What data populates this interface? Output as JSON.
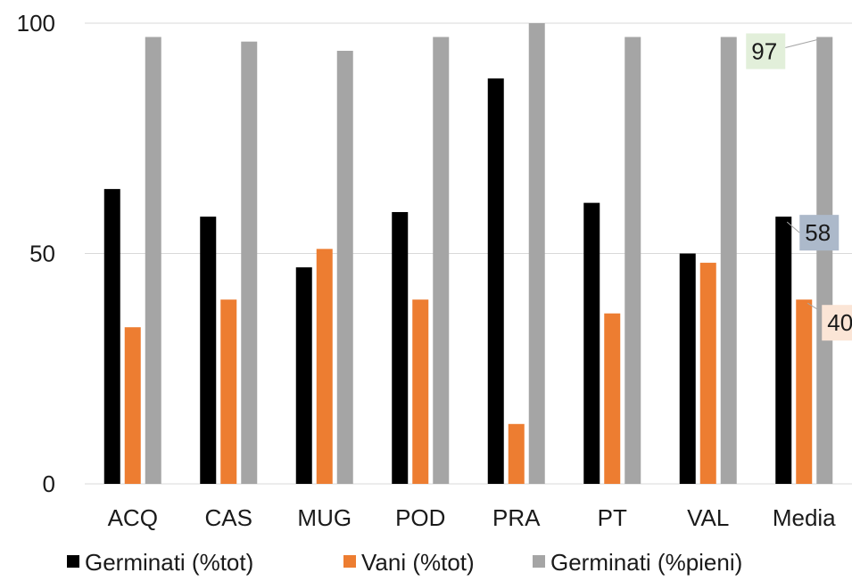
{
  "chart_data": {
    "type": "bar",
    "categories": [
      "ACQ",
      "CAS",
      "MUG",
      "POD",
      "PRA",
      "PT",
      "VAL",
      "Media"
    ],
    "series": [
      {
        "name": "Germinati (%tot)",
        "color": "#000000",
        "values": [
          64,
          58,
          47,
          59,
          88,
          61,
          50,
          58
        ]
      },
      {
        "name": "Vani (%tot)",
        "color": "#ed7d31",
        "values": [
          34,
          40,
          51,
          40,
          13,
          37,
          48,
          40
        ]
      },
      {
        "name": "Germinati (%pieni)",
        "color": "#a5a5a5",
        "values": [
          97,
          96,
          94,
          97,
          100,
          97,
          97,
          97
        ]
      }
    ],
    "ylim": [
      0,
      100
    ],
    "yticks": [
      "0",
      "50",
      "100"
    ],
    "grid": true,
    "legend_position": "bottom",
    "annotations": [
      {
        "category": "Media",
        "series": 2,
        "text": "97",
        "bg": "#e2efda"
      },
      {
        "category": "Media",
        "series": 0,
        "text": "58",
        "bg": "#acb9ca"
      },
      {
        "category": "Media",
        "series": 1,
        "text": "40",
        "bg": "#fbe5d6"
      }
    ]
  }
}
